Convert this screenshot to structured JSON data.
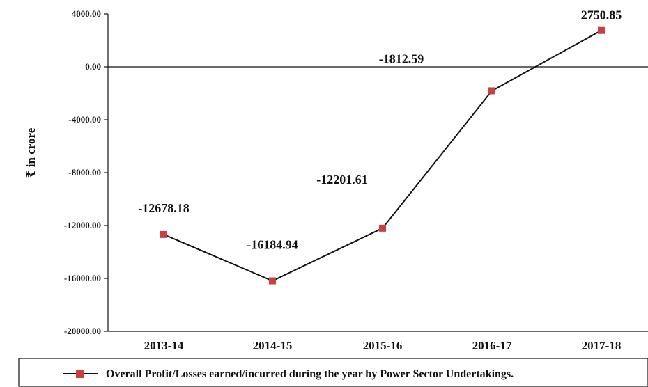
{
  "chart_data": {
    "type": "line",
    "ylabel": "₹ in crore",
    "categories": [
      "2013-14",
      "2014-15",
      "2015-16",
      "2016-17",
      "2017-18"
    ],
    "series": [
      {
        "name": "Overall Profit/Losses earned/incurred during the year by Power Sector Undertakings.",
        "values": [
          -12678.18,
          -16184.94,
          -12201.61,
          -1812.59,
          2750.85
        ],
        "color": "#c94040",
        "line_color": "#111111"
      }
    ],
    "data_labels": [
      "-12678.18",
      "-16184.94",
      "-12201.61",
      "-1812.59",
      "2750.85"
    ],
    "ylim": [
      -20000,
      4000
    ],
    "yticks": [
      4000,
      0,
      -4000,
      -8000,
      -12000,
      -16000,
      -20000
    ],
    "ytick_labels": [
      "4000.00",
      "0.00",
      "-4000.00",
      "-8000.00",
      "-12000.00",
      "-16000.00",
      "-20000.00"
    ],
    "zero_line": true,
    "grid": false,
    "legend_position": "bottom"
  }
}
